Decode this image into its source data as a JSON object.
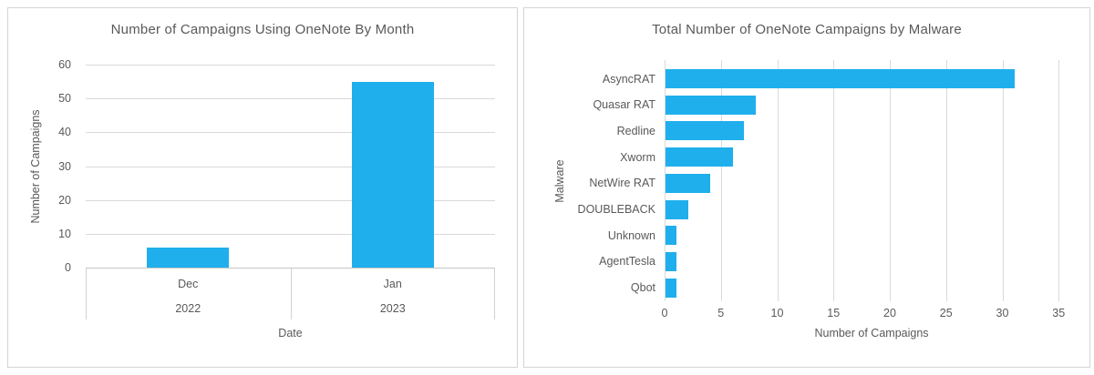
{
  "colors": {
    "bar": "#1fafec",
    "text": "#595959",
    "gridline": "#d9d9d9",
    "axis_line": "#c6c6c6",
    "panel_border": "#d4d4d4"
  },
  "chart_data": [
    {
      "id": "monthly",
      "type": "bar",
      "title": "Number of Campaigns Using OneNote By Month",
      "xlabel": "Date",
      "ylabel": "Number of Campaigns",
      "categories": [
        {
          "month": "Dec",
          "year": "2022"
        },
        {
          "month": "Jan",
          "year": "2023"
        }
      ],
      "values": [
        6,
        55
      ],
      "ylim": [
        0,
        60
      ],
      "yticks": [
        0,
        10,
        20,
        30,
        40,
        50,
        60
      ],
      "grid": true,
      "legend": false
    },
    {
      "id": "malware",
      "type": "bar-horizontal",
      "title": "Total Number of OneNote Campaigns by Malware",
      "xlabel": "Number of Campaigns",
      "ylabel": "Malware",
      "categories": [
        "AsyncRAT",
        "Quasar RAT",
        "Redline",
        "Xworm",
        "NetWire RAT",
        "DOUBLEBACK",
        "Unknown",
        "AgentTesla",
        "Qbot"
      ],
      "values": [
        31,
        8,
        7,
        6,
        4,
        2,
        1,
        1,
        1
      ],
      "xlim": [
        0,
        35
      ],
      "xticks": [
        0,
        5,
        10,
        15,
        20,
        25,
        30,
        35
      ],
      "grid": true,
      "legend": false
    }
  ]
}
